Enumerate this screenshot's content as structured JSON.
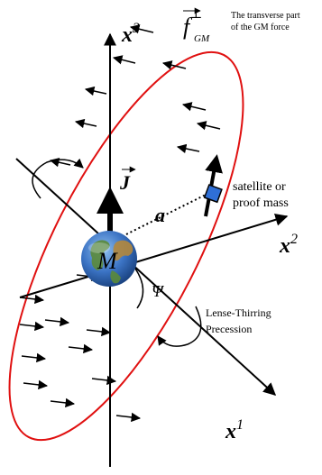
{
  "labels": {
    "x3": {
      "base": "x",
      "sup": "3"
    },
    "x2": {
      "base": "x",
      "sup": "2"
    },
    "x1": {
      "base": "x",
      "sup": "1"
    },
    "f": {
      "base": "f",
      "sup": "⊥",
      "sub": "GM"
    },
    "transverse_note": [
      "The transverse part",
      "of the GM force"
    ],
    "J": "J",
    "a": "a",
    "M": "M",
    "psi": "Ψ",
    "satellite_note": [
      "satellite or",
      "proof mass"
    ],
    "lense_note": [
      "Lense-Thirring",
      "Precession"
    ]
  },
  "colors": {
    "orbit": "#e01010",
    "axes": "#000000",
    "satellite": "#2f6fd6",
    "earth_ocean": "#3b73c4",
    "earth_land": "#5b8a3a"
  },
  "icons": {
    "earth": "earth-globe-icon",
    "satellite": "satellite-square-icon"
  }
}
